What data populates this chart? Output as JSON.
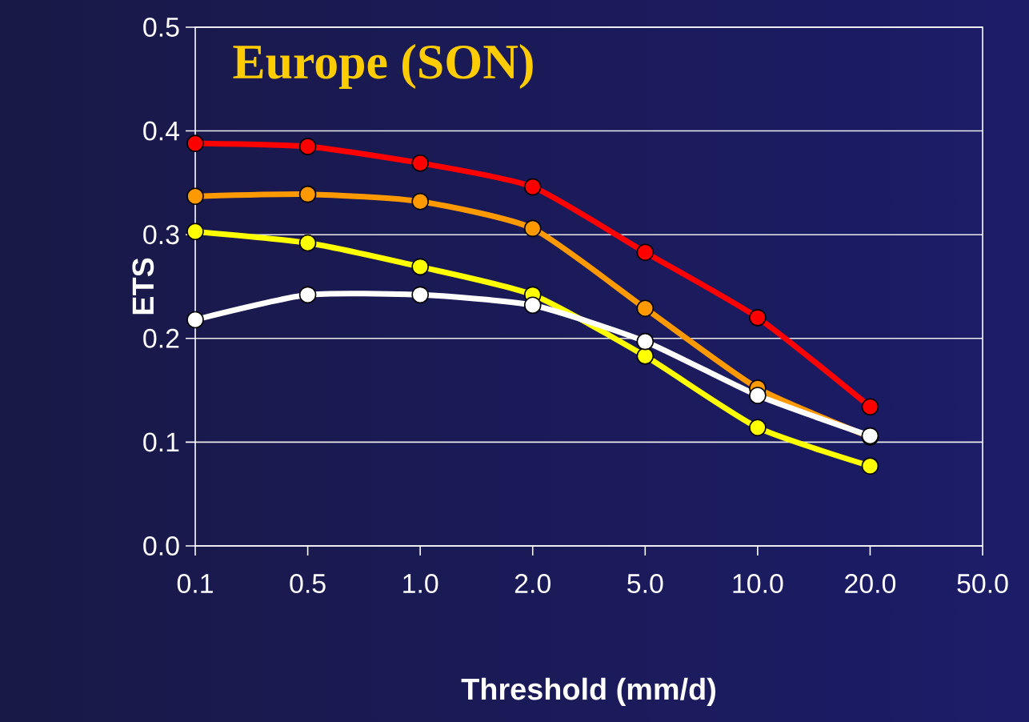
{
  "chart_data": {
    "type": "line",
    "title": "Europe (SON)",
    "xlabel": "Threshold (mm/d)",
    "ylabel": "ETS",
    "categories": [
      "0.1",
      "0.5",
      "1.0",
      "2.0",
      "5.0",
      "10.0",
      "20.0",
      "50.0"
    ],
    "series": [
      {
        "color": "#ff0000",
        "values": [
          0.388,
          0.385,
          0.369,
          0.346,
          0.283,
          0.22,
          0.134,
          null
        ]
      },
      {
        "color": "#ff9900",
        "values": [
          0.337,
          0.339,
          0.332,
          0.306,
          0.229,
          0.152,
          0.105,
          null
        ]
      },
      {
        "color": "#ffff00",
        "values": [
          0.303,
          0.292,
          0.269,
          0.242,
          0.183,
          0.114,
          0.077,
          null
        ]
      },
      {
        "color": "#ffffff",
        "values": [
          0.218,
          0.242,
          0.242,
          0.232,
          0.197,
          0.145,
          0.106,
          null
        ]
      }
    ],
    "ylim": [
      0,
      0.5
    ],
    "yticks": [
      {
        "value": 0,
        "label": "0.0"
      },
      0.1,
      0.2,
      0.3,
      0.4,
      0.5
    ],
    "grid": "y",
    "marker": "circle",
    "line_style": "solid"
  }
}
